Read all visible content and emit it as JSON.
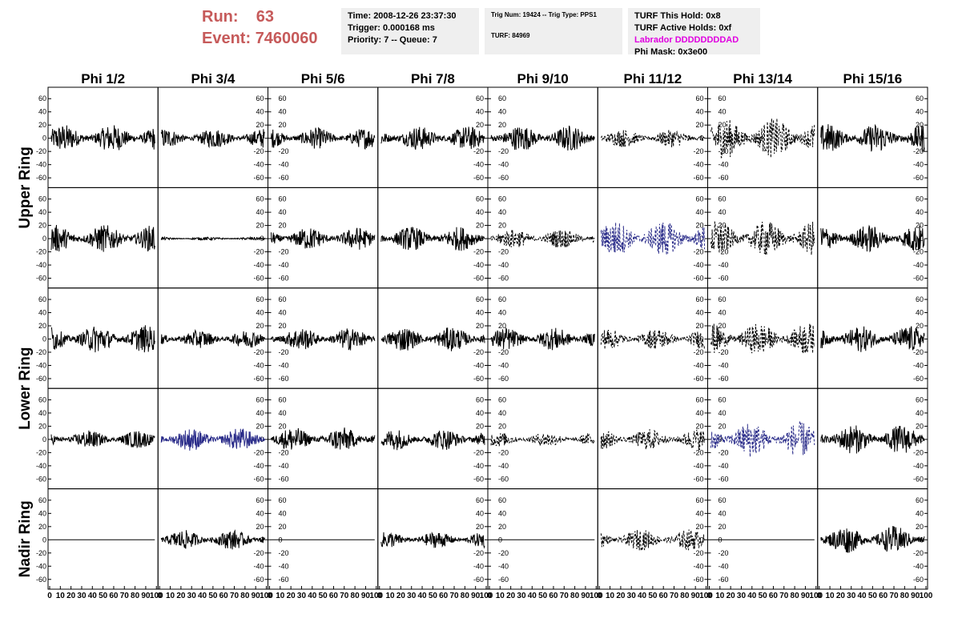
{
  "header": {
    "run_label": "Run:",
    "run_value": "63",
    "event_label": "Event:",
    "event_value": "7460060"
  },
  "info_time": {
    "time": "Time: 2008-12-26 23:37:30",
    "trigger": "Trigger: 0.000168 ms",
    "priority": "Priority: 7 -- Queue: 7"
  },
  "info_trig": {
    "trig": "Trig Num: 19424 -- Trig Type: PPS1",
    "turf": "TURF: 84969"
  },
  "info_turf": {
    "this_hold": "TURF This Hold: 0x8",
    "active_holds": "TURF Active Holds: 0xf",
    "labrador": "Labrador DDDDDDDDAD",
    "phi_mask": "Phi Mask: 0x3e00"
  },
  "chart_data": {
    "type": "line",
    "title": "",
    "columns": [
      "Phi 1/2",
      "Phi 3/4",
      "Phi 5/6",
      "Phi 7/8",
      "Phi 9/10",
      "Phi 11/12",
      "Phi 13/14",
      "Phi 15/16"
    ],
    "ring_labels": [
      "Upper Ring",
      "Lower Ring",
      "Nadir Ring"
    ],
    "ylim": [
      -70,
      70
    ],
    "yticks": [
      -60,
      -40,
      -20,
      0,
      20,
      40,
      60
    ],
    "xlim": [
      0,
      100
    ],
    "xtick_labels": [
      "0",
      "10",
      "20",
      "30",
      "40",
      "50",
      "60",
      "70",
      "80",
      "90",
      "100"
    ],
    "colors": {
      "solid": "#000000",
      "blue": "#2b2d8a",
      "axis": "#000000"
    },
    "rows": [
      [
        {
          "amp": 17,
          "style": "solid"
        },
        {
          "amp": 12,
          "style": "solid"
        },
        {
          "amp": 13,
          "style": "solid"
        },
        {
          "amp": 15,
          "style": "solid"
        },
        {
          "amp": 16,
          "style": "solid"
        },
        {
          "amp": 11,
          "style": "dashed"
        },
        {
          "amp": 25,
          "style": "dashed"
        },
        {
          "amp": 18,
          "style": "solid"
        }
      ],
      [
        {
          "amp": 17,
          "style": "solid"
        },
        {
          "amp": 2,
          "style": "solid"
        },
        {
          "amp": 14,
          "style": "solid"
        },
        {
          "amp": 15,
          "style": "solid"
        },
        {
          "amp": 12,
          "style": "dashed"
        },
        {
          "amp": 22,
          "style": "dashed-blue"
        },
        {
          "amp": 22,
          "style": "dashed"
        },
        {
          "amp": 17,
          "style": "solid"
        }
      ],
      [
        {
          "amp": 17,
          "style": "solid"
        },
        {
          "amp": 11,
          "style": "solid"
        },
        {
          "amp": 14,
          "style": "solid"
        },
        {
          "amp": 15,
          "style": "solid"
        },
        {
          "amp": 14,
          "style": "solid"
        },
        {
          "amp": 13,
          "style": "dashed"
        },
        {
          "amp": 20,
          "style": "dashed"
        },
        {
          "amp": 16,
          "style": "solid"
        }
      ],
      [
        {
          "amp": 11,
          "style": "solid"
        },
        {
          "amp": 14,
          "style": "blue"
        },
        {
          "amp": 15,
          "style": "solid"
        },
        {
          "amp": 13,
          "style": "solid"
        },
        {
          "amp": 9,
          "style": "dashed"
        },
        {
          "amp": 13,
          "style": "dashed"
        },
        {
          "amp": 22,
          "style": "dashed-blue"
        },
        {
          "amp": 18,
          "style": "solid"
        }
      ],
      [
        {
          "amp": 0,
          "style": "solid"
        },
        {
          "amp": 12,
          "style": "solid"
        },
        {
          "amp": 0,
          "style": "solid"
        },
        {
          "amp": 10,
          "style": "solid"
        },
        {
          "amp": 0,
          "style": "solid"
        },
        {
          "amp": 13,
          "style": "dashed"
        },
        {
          "amp": 0,
          "style": "solid"
        },
        {
          "amp": 17,
          "style": "solid"
        }
      ]
    ]
  }
}
